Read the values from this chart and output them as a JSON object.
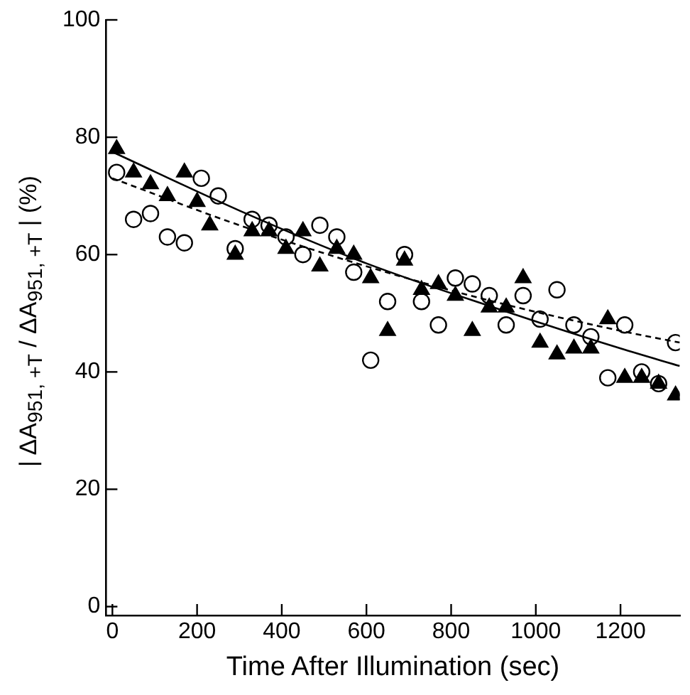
{
  "chart_data": {
    "type": "scatter",
    "xlabel": "Time After Illumination (sec)",
    "ylabel": "| ΔA$_{951, +T}$ / ΔA$_{951, +T}$ |   (%)",
    "xlim": [
      -15,
      1340
    ],
    "ylim": [
      -1.5,
      100
    ],
    "xticks": [
      0,
      200,
      400,
      600,
      800,
      1000,
      1200
    ],
    "yticks": [
      0,
      20,
      40,
      60,
      80,
      100
    ],
    "grid": false,
    "legend": false,
    "series": [
      {
        "marker": "triangle",
        "color": "#000000",
        "x": [
          10,
          50,
          90,
          130,
          170,
          200,
          230,
          290,
          330,
          370,
          410,
          450,
          490,
          530,
          570,
          610,
          650,
          690,
          730,
          770,
          810,
          850,
          890,
          930,
          970,
          1010,
          1050,
          1090,
          1130,
          1170,
          1210,
          1250,
          1290,
          1330
        ],
        "values": [
          78,
          74,
          72,
          70,
          74,
          69,
          65,
          60,
          64,
          64,
          61,
          64,
          58,
          61,
          60,
          56,
          47,
          59,
          54,
          55,
          53,
          47,
          51,
          51,
          56,
          45,
          43,
          44,
          44,
          49,
          39,
          39,
          38,
          36
        ]
      },
      {
        "marker": "circle",
        "color": "#000000",
        "x": [
          10,
          50,
          90,
          130,
          170,
          210,
          250,
          290,
          330,
          370,
          410,
          450,
          490,
          530,
          570,
          610,
          650,
          690,
          730,
          770,
          810,
          850,
          890,
          930,
          970,
          1010,
          1050,
          1090,
          1130,
          1170,
          1210,
          1250,
          1290,
          1330
        ],
        "values": [
          74,
          66,
          67,
          63,
          62,
          73,
          70,
          61,
          66,
          65,
          63,
          60,
          65,
          63,
          57,
          42,
          52,
          60,
          52,
          48,
          56,
          55,
          53,
          48,
          53,
          49,
          54,
          48,
          46,
          39,
          48,
          40,
          38,
          45
        ]
      },
      {
        "type": "line",
        "line_style": "solid",
        "color": "#000000",
        "x": [
          0,
          300,
          600,
          900,
          1200,
          1340
        ],
        "values": [
          77.5,
          67.5,
          58.5,
          51,
          44,
          41
        ]
      },
      {
        "type": "line",
        "line_style": "dashed",
        "color": "#000000",
        "x": [
          0,
          300,
          600,
          900,
          1200,
          1340
        ],
        "values": [
          73,
          65,
          58,
          52,
          47,
          45
        ]
      }
    ]
  }
}
